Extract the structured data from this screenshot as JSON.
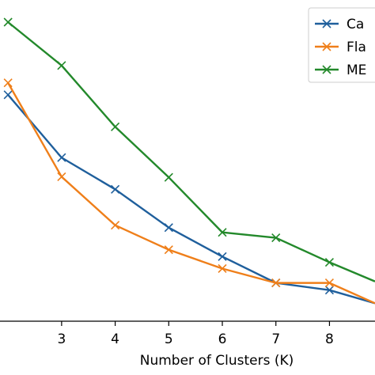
{
  "chart_data": {
    "type": "line",
    "title": "",
    "xlabel": "Number of Clusters (K)",
    "ylabel": "",
    "xlim": [
      1.85,
      8.85
    ],
    "ylim": [
      0,
      1
    ],
    "x_ticks": [
      3,
      4,
      5,
      6,
      7,
      8
    ],
    "grid": false,
    "legend_position": "top-right",
    "x": [
      2,
      3,
      4,
      5,
      6,
      7,
      8,
      8.85
    ],
    "series": [
      {
        "name": "Ca",
        "color": "#1f5f9c",
        "values": [
          0.757,
          0.547,
          0.441,
          0.313,
          0.216,
          0.128,
          0.104,
          0.06
        ]
      },
      {
        "name": "Fla",
        "color": "#ef7f1a",
        "values": [
          0.797,
          0.483,
          0.321,
          0.239,
          0.176,
          0.128,
          0.128,
          0.06
        ]
      },
      {
        "name": "ME",
        "color": "#23892b",
        "values": [
          1.0,
          0.855,
          0.65,
          0.481,
          0.297,
          0.279,
          0.197,
          0.133
        ]
      }
    ]
  }
}
